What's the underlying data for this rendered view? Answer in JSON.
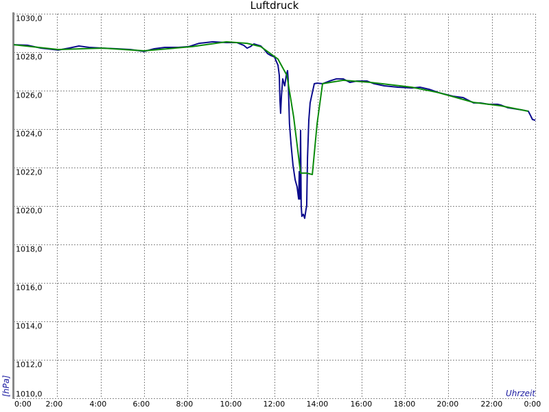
{
  "chart_data": {
    "type": "line",
    "title": "Luftdruck",
    "xlabel": "Uhrzeit",
    "ylabel": "[hPa]",
    "xlim": [
      0,
      24
    ],
    "ylim": [
      1010,
      1030
    ],
    "grid": true,
    "x_tick_labels": [
      "0:00",
      "2:00",
      "4:00",
      "6:00",
      "8:00",
      "10:00",
      "12:00",
      "14:00",
      "16:00",
      "18:00",
      "20:00",
      "22:00",
      "0:00"
    ],
    "y_tick_labels": [
      "1010,0",
      "1012,0",
      "1014,0",
      "1016,0",
      "1018,0",
      "1020,0",
      "1022,0",
      "1024,0",
      "1026,0",
      "1028,0",
      "1030,0"
    ],
    "y_ticks": [
      1010,
      1012,
      1014,
      1016,
      1018,
      1020,
      1022,
      1024,
      1026,
      1028,
      1030
    ],
    "series": [
      {
        "color": "#0a0a8c",
        "points": [
          [
            0.0,
            1028.39
          ],
          [
            0.63,
            1028.36
          ],
          [
            1.26,
            1028.21
          ],
          [
            2.05,
            1028.11
          ],
          [
            2.53,
            1028.21
          ],
          [
            3.0,
            1028.32
          ],
          [
            3.47,
            1028.25
          ],
          [
            4.11,
            1028.21
          ],
          [
            4.74,
            1028.18
          ],
          [
            5.37,
            1028.14
          ],
          [
            6.0,
            1028.04
          ],
          [
            6.47,
            1028.18
          ],
          [
            6.95,
            1028.25
          ],
          [
            7.58,
            1028.25
          ],
          [
            8.05,
            1028.29
          ],
          [
            8.53,
            1028.46
          ],
          [
            9.16,
            1028.54
          ],
          [
            9.79,
            1028.5
          ],
          [
            10.26,
            1028.5
          ],
          [
            10.58,
            1028.36
          ],
          [
            10.74,
            1028.21
          ],
          [
            10.89,
            1028.29
          ],
          [
            11.05,
            1028.43
          ],
          [
            11.37,
            1028.32
          ],
          [
            11.53,
            1028.14
          ],
          [
            11.68,
            1027.93
          ],
          [
            11.84,
            1027.82
          ],
          [
            12.0,
            1027.75
          ],
          [
            12.09,
            1027.5
          ],
          [
            12.16,
            1027.32
          ],
          [
            12.22,
            1026.79
          ],
          [
            12.25,
            1025.54
          ],
          [
            12.28,
            1024.82
          ],
          [
            12.32,
            1025.71
          ],
          [
            12.38,
            1026.61
          ],
          [
            12.47,
            1026.25
          ],
          [
            12.54,
            1026.79
          ],
          [
            12.6,
            1027.04
          ],
          [
            12.63,
            1026.61
          ],
          [
            12.69,
            1024.29
          ],
          [
            12.76,
            1023.21
          ],
          [
            12.85,
            1022.14
          ],
          [
            12.95,
            1021.36
          ],
          [
            13.04,
            1021.0
          ],
          [
            13.11,
            1020.36
          ],
          [
            13.14,
            1021.79
          ],
          [
            13.17,
            1020.36
          ],
          [
            13.2,
            1023.93
          ],
          [
            13.23,
            1020.0
          ],
          [
            13.26,
            1019.46
          ],
          [
            13.33,
            1019.57
          ],
          [
            13.39,
            1019.36
          ],
          [
            13.45,
            1019.82
          ],
          [
            13.48,
            1020.0
          ],
          [
            13.52,
            1022.5
          ],
          [
            13.58,
            1024.46
          ],
          [
            13.64,
            1025.36
          ],
          [
            13.74,
            1025.89
          ],
          [
            13.83,
            1026.36
          ],
          [
            13.96,
            1026.39
          ],
          [
            14.21,
            1026.36
          ],
          [
            14.53,
            1026.5
          ],
          [
            14.84,
            1026.61
          ],
          [
            15.16,
            1026.61
          ],
          [
            15.47,
            1026.43
          ],
          [
            15.79,
            1026.5
          ],
          [
            16.26,
            1026.5
          ],
          [
            16.58,
            1026.36
          ],
          [
            17.05,
            1026.25
          ],
          [
            17.68,
            1026.18
          ],
          [
            18.32,
            1026.14
          ],
          [
            18.69,
            1026.18
          ],
          [
            19.11,
            1026.07
          ],
          [
            19.58,
            1025.89
          ],
          [
            20.21,
            1025.71
          ],
          [
            20.68,
            1025.64
          ],
          [
            21.16,
            1025.36
          ],
          [
            21.47,
            1025.36
          ],
          [
            21.85,
            1025.29
          ],
          [
            22.26,
            1025.29
          ],
          [
            22.42,
            1025.25
          ],
          [
            22.74,
            1025.11
          ],
          [
            23.37,
            1025.0
          ],
          [
            23.68,
            1024.93
          ],
          [
            23.78,
            1024.71
          ],
          [
            23.87,
            1024.5
          ],
          [
            24.0,
            1024.46
          ]
        ]
      },
      {
        "color": "#0a8a0a",
        "points": [
          [
            0.0,
            1028.39
          ],
          [
            2.05,
            1028.14
          ],
          [
            4.11,
            1028.21
          ],
          [
            6.0,
            1028.07
          ],
          [
            8.21,
            1028.29
          ],
          [
            9.79,
            1028.54
          ],
          [
            10.74,
            1028.46
          ],
          [
            11.37,
            1028.29
          ],
          [
            12.16,
            1027.64
          ],
          [
            12.57,
            1026.79
          ],
          [
            12.88,
            1024.64
          ],
          [
            13.2,
            1021.71
          ],
          [
            13.48,
            1021.71
          ],
          [
            13.74,
            1021.64
          ],
          [
            13.96,
            1024.29
          ],
          [
            14.21,
            1026.36
          ],
          [
            15.16,
            1026.54
          ],
          [
            16.42,
            1026.43
          ],
          [
            18.32,
            1026.18
          ],
          [
            19.58,
            1025.89
          ],
          [
            21.16,
            1025.39
          ],
          [
            22.42,
            1025.21
          ],
          [
            23.68,
            1024.93
          ]
        ]
      }
    ]
  }
}
